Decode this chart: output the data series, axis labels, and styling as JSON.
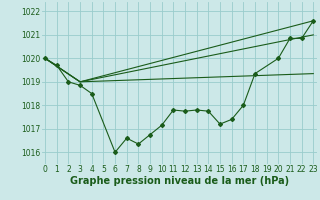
{
  "bg_color": "#cce8e8",
  "grid_color": "#99cccc",
  "line_color": "#1a5c1a",
  "marker_color": "#1a5c1a",
  "ylabel_values": [
    1016,
    1017,
    1018,
    1019,
    1020,
    1021,
    1022
  ],
  "xlabel_values": [
    0,
    1,
    2,
    3,
    4,
    5,
    6,
    7,
    8,
    9,
    10,
    11,
    12,
    13,
    14,
    15,
    16,
    17,
    18,
    19,
    20,
    21,
    22,
    23
  ],
  "observed_x": [
    0,
    1,
    2,
    3,
    4,
    6,
    7,
    8,
    9,
    10,
    11,
    12,
    13,
    14,
    15,
    16,
    17,
    18,
    20,
    21,
    22,
    23
  ],
  "observed_y": [
    1020.0,
    1019.7,
    1019.0,
    1018.85,
    1018.5,
    1016.0,
    1016.6,
    1016.35,
    1016.75,
    1017.15,
    1017.8,
    1017.75,
    1017.8,
    1017.75,
    1017.2,
    1017.4,
    1018.0,
    1019.35,
    1020.0,
    1020.85,
    1020.85,
    1021.6
  ],
  "line1_x": [
    0,
    3,
    23
  ],
  "line1_y": [
    1020.0,
    1019.0,
    1021.6
  ],
  "line2_x": [
    0,
    3,
    23
  ],
  "line2_y": [
    1020.0,
    1019.0,
    1021.0
  ],
  "line3_x": [
    0,
    3,
    23
  ],
  "line3_y": [
    1020.0,
    1019.0,
    1019.35
  ],
  "ylim": [
    1015.5,
    1022.4
  ],
  "xlim": [
    -0.3,
    23.3
  ],
  "xlabel": "Graphe pression niveau de la mer (hPa)",
  "xlabel_fontsize": 7,
  "xlabel_fontweight": "bold",
  "tick_fontsize": 5.5
}
